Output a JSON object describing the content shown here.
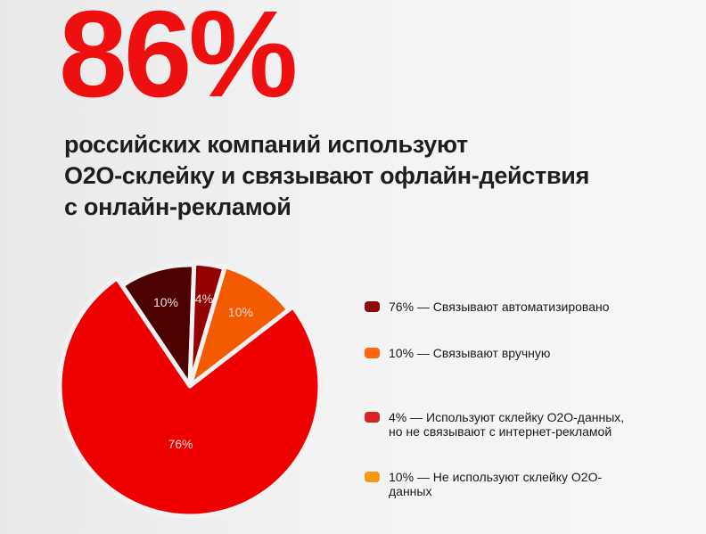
{
  "headline": "86%",
  "subtitle": [
    "российских компаний используют",
    "O2O-склейку и связывают офлайн-действия",
    "с онлайн-рекламой"
  ],
  "chart_data": {
    "type": "pie",
    "slices": [
      {
        "label": "10%",
        "value": 10,
        "color": "#4d0000"
      },
      {
        "label": "4%",
        "value": 4,
        "color": "#930000"
      },
      {
        "label": "10%",
        "value": 10,
        "color": "#f45a00"
      },
      {
        "label": "76%",
        "value": 76,
        "color": "#ee0000"
      }
    ],
    "legend": [
      {
        "text": "76% — Связывают автоматизировано",
        "color": "#8a0a0a"
      },
      {
        "text": "10% — Связывают вручную",
        "color": "#ff6410"
      },
      {
        "text": "4% — Используют склейку O2O-данных, но не связывают с интернет-рекламой",
        "color": "#d42424"
      },
      {
        "text": "10% — Не используют склейку O2O-данных",
        "color": "#f59a10"
      }
    ],
    "legend_position": "right"
  }
}
